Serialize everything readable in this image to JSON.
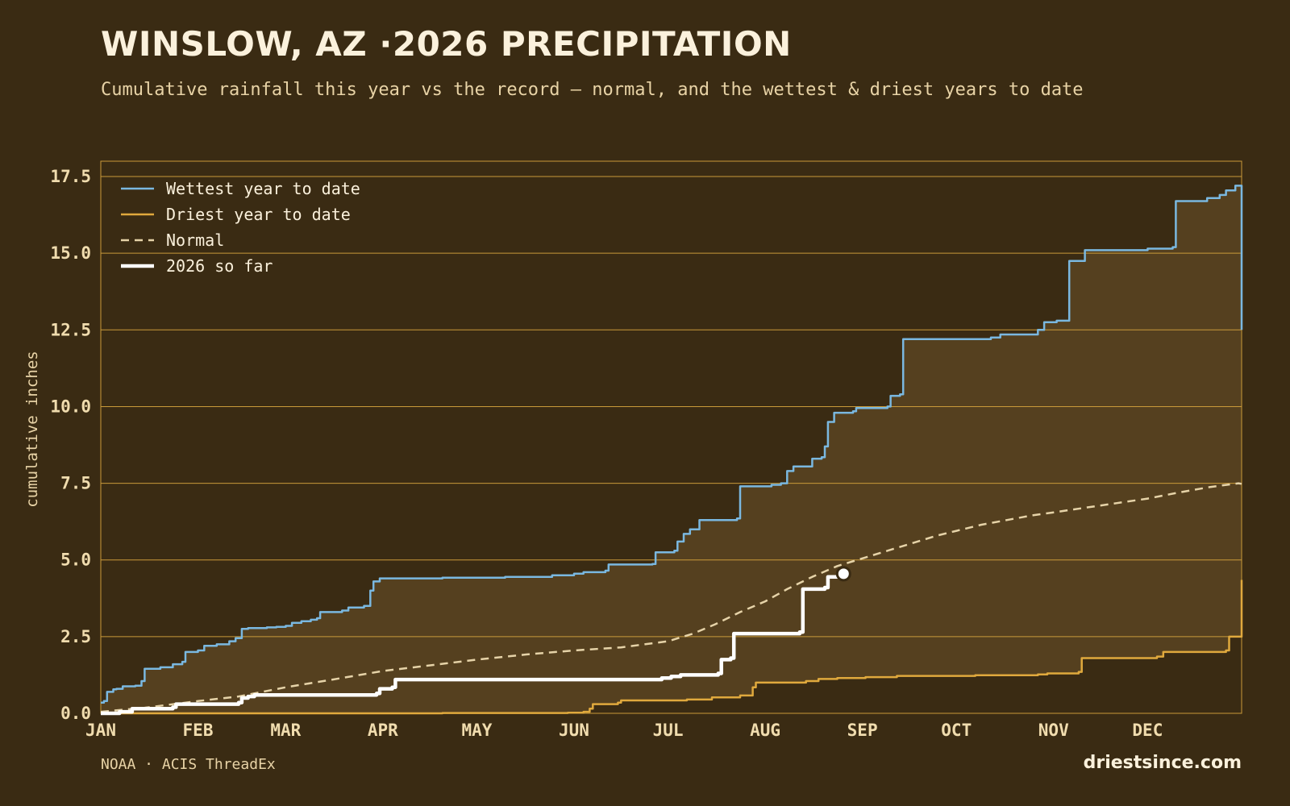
{
  "header": {
    "title": "WINSLOW, AZ ·2026 PRECIPITATION",
    "subtitle": "Cumulative rainfall this year vs the record — normal, and the wettest & driest years to date"
  },
  "footer": {
    "source": "NOAA · ACIS ThreadEx",
    "brand": "driestsince.com"
  },
  "colors": {
    "background": "#3a2b13",
    "band_fill": "#55401f",
    "grid": "#c99a3a",
    "wettest": "#7ab8e0",
    "driest": "#e0a93d",
    "normal": "#e6d3a8",
    "current": "#ffffff"
  },
  "chart_data": {
    "type": "line",
    "title": "WINSLOW, AZ ·2026 PRECIPITATION",
    "ylabel": "cumulative inches",
    "xlabel": "",
    "x_unit": "day of year",
    "xlim": [
      1,
      365
    ],
    "ylim": [
      0,
      18
    ],
    "y_ticks": [
      "0.0",
      "2.5",
      "5.0",
      "7.5",
      "10.0",
      "12.5",
      "15.0",
      "17.5"
    ],
    "y_tick_values": [
      0,
      2.5,
      5,
      7.5,
      10,
      12.5,
      15,
      17.5
    ],
    "x_ticks": [
      "JAN",
      "FEB",
      "MAR",
      "APR",
      "MAY",
      "JUN",
      "JUL",
      "AUG",
      "SEP",
      "OCT",
      "NOV",
      "DEC"
    ],
    "x_tick_days": [
      1,
      32,
      60,
      91,
      121,
      152,
      182,
      213,
      244,
      274,
      305,
      335
    ],
    "grid": "horizontal",
    "legend_position": "top-left",
    "shaded_band": "between wettest and driest",
    "series": [
      {
        "name": "Wettest year to date",
        "key": "wettest",
        "step": true,
        "points": [
          [
            1,
            0.35
          ],
          [
            2,
            0.4
          ],
          [
            3,
            0.7
          ],
          [
            5,
            0.78
          ],
          [
            6,
            0.8
          ],
          [
            8,
            0.88
          ],
          [
            12,
            0.9
          ],
          [
            14,
            1.05
          ],
          [
            15,
            1.45
          ],
          [
            20,
            1.5
          ],
          [
            24,
            1.6
          ],
          [
            27,
            1.68
          ],
          [
            28,
            2.0
          ],
          [
            32,
            2.05
          ],
          [
            34,
            2.2
          ],
          [
            38,
            2.25
          ],
          [
            42,
            2.35
          ],
          [
            44,
            2.45
          ],
          [
            46,
            2.75
          ],
          [
            48,
            2.78
          ],
          [
            54,
            2.8
          ],
          [
            57,
            2.82
          ],
          [
            60,
            2.85
          ],
          [
            62,
            2.95
          ],
          [
            65,
            3.0
          ],
          [
            68,
            3.05
          ],
          [
            70,
            3.1
          ],
          [
            71,
            3.3
          ],
          [
            78,
            3.35
          ],
          [
            80,
            3.45
          ],
          [
            85,
            3.5
          ],
          [
            87,
            4.0
          ],
          [
            88,
            4.3
          ],
          [
            90,
            4.4
          ],
          [
            110,
            4.42
          ],
          [
            130,
            4.45
          ],
          [
            145,
            4.5
          ],
          [
            152,
            4.55
          ],
          [
            155,
            4.6
          ],
          [
            162,
            4.65
          ],
          [
            163,
            4.85
          ],
          [
            177,
            4.87
          ],
          [
            178,
            5.25
          ],
          [
            184,
            5.3
          ],
          [
            185,
            5.6
          ],
          [
            187,
            5.85
          ],
          [
            189,
            6.0
          ],
          [
            192,
            6.3
          ],
          [
            204,
            6.35
          ],
          [
            205,
            7.4
          ],
          [
            215,
            7.45
          ],
          [
            218,
            7.5
          ],
          [
            220,
            7.9
          ],
          [
            222,
            8.05
          ],
          [
            228,
            8.3
          ],
          [
            231,
            8.35
          ],
          [
            232,
            8.7
          ],
          [
            233,
            9.5
          ],
          [
            235,
            9.8
          ],
          [
            241,
            9.85
          ],
          [
            242,
            9.95
          ],
          [
            252,
            10.0
          ],
          [
            253,
            10.35
          ],
          [
            256,
            10.4
          ],
          [
            257,
            12.2
          ],
          [
            285,
            12.25
          ],
          [
            288,
            12.35
          ],
          [
            300,
            12.5
          ],
          [
            302,
            12.75
          ],
          [
            306,
            12.8
          ],
          [
            310,
            14.75
          ],
          [
            315,
            15.1
          ],
          [
            335,
            15.15
          ],
          [
            343,
            15.2
          ],
          [
            344,
            16.7
          ],
          [
            354,
            16.8
          ],
          [
            358,
            16.9
          ],
          [
            360,
            17.05
          ],
          [
            363,
            17.2
          ],
          [
            364,
            17.2
          ],
          [
            365,
            12.5
          ]
        ]
      },
      {
        "name": "Driest year to date",
        "key": "driest",
        "step": true,
        "points": [
          [
            1,
            0
          ],
          [
            110,
            0.01
          ],
          [
            150,
            0.02
          ],
          [
            155,
            0.05
          ],
          [
            157,
            0.15
          ],
          [
            158,
            0.3
          ],
          [
            166,
            0.35
          ],
          [
            167,
            0.42
          ],
          [
            188,
            0.45
          ],
          [
            196,
            0.52
          ],
          [
            205,
            0.58
          ],
          [
            209,
            0.85
          ],
          [
            210,
            1.0
          ],
          [
            226,
            1.05
          ],
          [
            230,
            1.12
          ],
          [
            236,
            1.15
          ],
          [
            245,
            1.18
          ],
          [
            255,
            1.22
          ],
          [
            280,
            1.24
          ],
          [
            300,
            1.27
          ],
          [
            303,
            1.3
          ],
          [
            313,
            1.35
          ],
          [
            314,
            1.8
          ],
          [
            338,
            1.85
          ],
          [
            340,
            2.0
          ],
          [
            360,
            2.05
          ],
          [
            361,
            2.5
          ],
          [
            364,
            2.5
          ],
          [
            365,
            4.35
          ]
        ]
      },
      {
        "name": "Normal",
        "key": "normal",
        "step": false,
        "points": [
          [
            1,
            0.05
          ],
          [
            15,
            0.18
          ],
          [
            32,
            0.4
          ],
          [
            45,
            0.55
          ],
          [
            60,
            0.85
          ],
          [
            75,
            1.1
          ],
          [
            91,
            1.38
          ],
          [
            105,
            1.55
          ],
          [
            121,
            1.75
          ],
          [
            137,
            1.92
          ],
          [
            152,
            2.05
          ],
          [
            167,
            2.15
          ],
          [
            182,
            2.35
          ],
          [
            190,
            2.6
          ],
          [
            197,
            2.9
          ],
          [
            205,
            3.3
          ],
          [
            213,
            3.65
          ],
          [
            220,
            4.05
          ],
          [
            228,
            4.45
          ],
          [
            236,
            4.8
          ],
          [
            244,
            5.05
          ],
          [
            252,
            5.3
          ],
          [
            260,
            5.55
          ],
          [
            268,
            5.8
          ],
          [
            274,
            5.95
          ],
          [
            282,
            6.15
          ],
          [
            290,
            6.3
          ],
          [
            298,
            6.45
          ],
          [
            305,
            6.55
          ],
          [
            315,
            6.7
          ],
          [
            325,
            6.85
          ],
          [
            335,
            7.0
          ],
          [
            345,
            7.2
          ],
          [
            355,
            7.38
          ],
          [
            364,
            7.5
          ],
          [
            365,
            7.48
          ]
        ]
      },
      {
        "name": "2026 so far",
        "key": "current",
        "step": true,
        "points": [
          [
            1,
            0
          ],
          [
            7,
            0.05
          ],
          [
            11,
            0.15
          ],
          [
            24,
            0.2
          ],
          [
            25,
            0.3
          ],
          [
            45,
            0.35
          ],
          [
            46,
            0.5
          ],
          [
            48,
            0.55
          ],
          [
            50,
            0.6
          ],
          [
            89,
            0.65
          ],
          [
            90,
            0.8
          ],
          [
            94,
            0.85
          ],
          [
            95,
            1.1
          ],
          [
            180,
            1.15
          ],
          [
            183,
            1.2
          ],
          [
            186,
            1.25
          ],
          [
            198,
            1.3
          ],
          [
            199,
            1.75
          ],
          [
            202,
            1.8
          ],
          [
            203,
            2.6
          ],
          [
            224,
            2.65
          ],
          [
            225,
            4.05
          ],
          [
            232,
            4.1
          ],
          [
            233,
            4.45
          ],
          [
            237,
            4.5
          ],
          [
            238,
            4.55
          ]
        ],
        "latest_marker": [
          238,
          4.55
        ]
      }
    ]
  }
}
